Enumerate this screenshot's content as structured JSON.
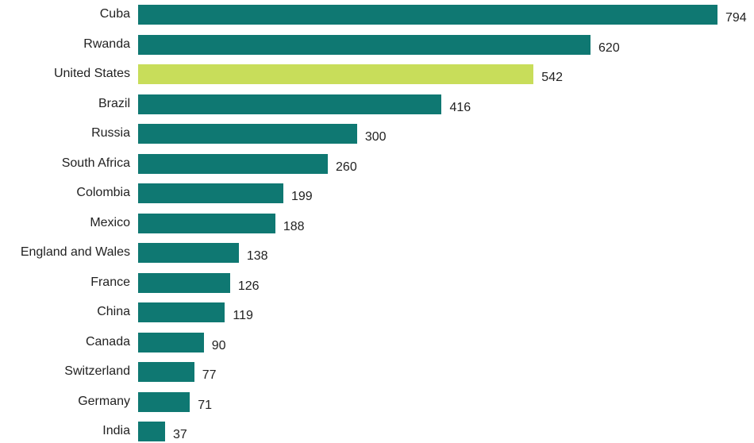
{
  "chart_data": {
    "type": "bar",
    "orientation": "horizontal",
    "title": "",
    "xlabel": "",
    "ylabel": "",
    "categories": [
      "Cuba",
      "Rwanda",
      "United States",
      "Brazil",
      "Russia",
      "South Africa",
      "Colombia",
      "Mexico",
      "England and Wales",
      "France",
      "China",
      "Canada",
      "Switzerland",
      "Germany",
      "India"
    ],
    "values": [
      794,
      620,
      542,
      416,
      300,
      260,
      199,
      188,
      138,
      126,
      119,
      90,
      77,
      71,
      37
    ],
    "highlight": "United States",
    "xlim": [
      0,
      794
    ],
    "grid": false,
    "colors": {
      "default": "#0f7872",
      "highlight": "#c8dd5a"
    }
  }
}
